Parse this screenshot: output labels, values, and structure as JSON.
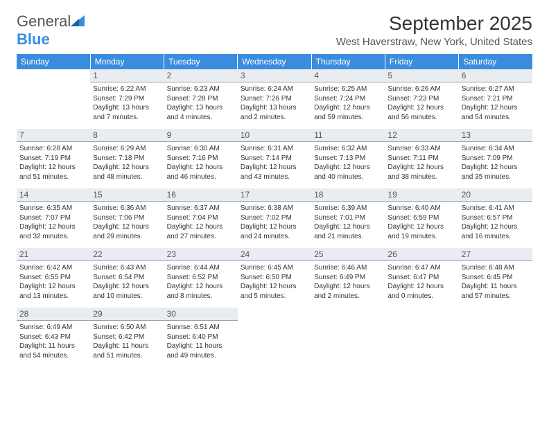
{
  "logo": {
    "textA": "General",
    "textB": "Blue"
  },
  "title": "September 2025",
  "subtitle": "West Haverstraw, New York, United States",
  "colors": {
    "header_bg": "#3a8dde",
    "header_text": "#ffffff",
    "daynum_bg": "#e9edf1",
    "daynum_border": "#8fa2b3",
    "page_bg": "#ffffff",
    "text": "#333333"
  },
  "weekdays": [
    "Sunday",
    "Monday",
    "Tuesday",
    "Wednesday",
    "Thursday",
    "Friday",
    "Saturday"
  ],
  "weeks": [
    [
      {
        "empty": true
      },
      {
        "day": "1",
        "sunrise": "Sunrise: 6:22 AM",
        "sunset": "Sunset: 7:29 PM",
        "daylight": "Daylight: 13 hours and 7 minutes."
      },
      {
        "day": "2",
        "sunrise": "Sunrise: 6:23 AM",
        "sunset": "Sunset: 7:28 PM",
        "daylight": "Daylight: 13 hours and 4 minutes."
      },
      {
        "day": "3",
        "sunrise": "Sunrise: 6:24 AM",
        "sunset": "Sunset: 7:26 PM",
        "daylight": "Daylight: 13 hours and 2 minutes."
      },
      {
        "day": "4",
        "sunrise": "Sunrise: 6:25 AM",
        "sunset": "Sunset: 7:24 PM",
        "daylight": "Daylight: 12 hours and 59 minutes."
      },
      {
        "day": "5",
        "sunrise": "Sunrise: 6:26 AM",
        "sunset": "Sunset: 7:23 PM",
        "daylight": "Daylight: 12 hours and 56 minutes."
      },
      {
        "day": "6",
        "sunrise": "Sunrise: 6:27 AM",
        "sunset": "Sunset: 7:21 PM",
        "daylight": "Daylight: 12 hours and 54 minutes."
      }
    ],
    [
      {
        "day": "7",
        "sunrise": "Sunrise: 6:28 AM",
        "sunset": "Sunset: 7:19 PM",
        "daylight": "Daylight: 12 hours and 51 minutes."
      },
      {
        "day": "8",
        "sunrise": "Sunrise: 6:29 AM",
        "sunset": "Sunset: 7:18 PM",
        "daylight": "Daylight: 12 hours and 48 minutes."
      },
      {
        "day": "9",
        "sunrise": "Sunrise: 6:30 AM",
        "sunset": "Sunset: 7:16 PM",
        "daylight": "Daylight: 12 hours and 46 minutes."
      },
      {
        "day": "10",
        "sunrise": "Sunrise: 6:31 AM",
        "sunset": "Sunset: 7:14 PM",
        "daylight": "Daylight: 12 hours and 43 minutes."
      },
      {
        "day": "11",
        "sunrise": "Sunrise: 6:32 AM",
        "sunset": "Sunset: 7:13 PM",
        "daylight": "Daylight: 12 hours and 40 minutes."
      },
      {
        "day": "12",
        "sunrise": "Sunrise: 6:33 AM",
        "sunset": "Sunset: 7:11 PM",
        "daylight": "Daylight: 12 hours and 38 minutes."
      },
      {
        "day": "13",
        "sunrise": "Sunrise: 6:34 AM",
        "sunset": "Sunset: 7:09 PM",
        "daylight": "Daylight: 12 hours and 35 minutes."
      }
    ],
    [
      {
        "day": "14",
        "sunrise": "Sunrise: 6:35 AM",
        "sunset": "Sunset: 7:07 PM",
        "daylight": "Daylight: 12 hours and 32 minutes."
      },
      {
        "day": "15",
        "sunrise": "Sunrise: 6:36 AM",
        "sunset": "Sunset: 7:06 PM",
        "daylight": "Daylight: 12 hours and 29 minutes."
      },
      {
        "day": "16",
        "sunrise": "Sunrise: 6:37 AM",
        "sunset": "Sunset: 7:04 PM",
        "daylight": "Daylight: 12 hours and 27 minutes."
      },
      {
        "day": "17",
        "sunrise": "Sunrise: 6:38 AM",
        "sunset": "Sunset: 7:02 PM",
        "daylight": "Daylight: 12 hours and 24 minutes."
      },
      {
        "day": "18",
        "sunrise": "Sunrise: 6:39 AM",
        "sunset": "Sunset: 7:01 PM",
        "daylight": "Daylight: 12 hours and 21 minutes."
      },
      {
        "day": "19",
        "sunrise": "Sunrise: 6:40 AM",
        "sunset": "Sunset: 6:59 PM",
        "daylight": "Daylight: 12 hours and 19 minutes."
      },
      {
        "day": "20",
        "sunrise": "Sunrise: 6:41 AM",
        "sunset": "Sunset: 6:57 PM",
        "daylight": "Daylight: 12 hours and 16 minutes."
      }
    ],
    [
      {
        "day": "21",
        "sunrise": "Sunrise: 6:42 AM",
        "sunset": "Sunset: 6:55 PM",
        "daylight": "Daylight: 12 hours and 13 minutes."
      },
      {
        "day": "22",
        "sunrise": "Sunrise: 6:43 AM",
        "sunset": "Sunset: 6:54 PM",
        "daylight": "Daylight: 12 hours and 10 minutes."
      },
      {
        "day": "23",
        "sunrise": "Sunrise: 6:44 AM",
        "sunset": "Sunset: 6:52 PM",
        "daylight": "Daylight: 12 hours and 8 minutes."
      },
      {
        "day": "24",
        "sunrise": "Sunrise: 6:45 AM",
        "sunset": "Sunset: 6:50 PM",
        "daylight": "Daylight: 12 hours and 5 minutes."
      },
      {
        "day": "25",
        "sunrise": "Sunrise: 6:46 AM",
        "sunset": "Sunset: 6:49 PM",
        "daylight": "Daylight: 12 hours and 2 minutes."
      },
      {
        "day": "26",
        "sunrise": "Sunrise: 6:47 AM",
        "sunset": "Sunset: 6:47 PM",
        "daylight": "Daylight: 12 hours and 0 minutes."
      },
      {
        "day": "27",
        "sunrise": "Sunrise: 6:48 AM",
        "sunset": "Sunset: 6:45 PM",
        "daylight": "Daylight: 11 hours and 57 minutes."
      }
    ],
    [
      {
        "day": "28",
        "sunrise": "Sunrise: 6:49 AM",
        "sunset": "Sunset: 6:43 PM",
        "daylight": "Daylight: 11 hours and 54 minutes."
      },
      {
        "day": "29",
        "sunrise": "Sunrise: 6:50 AM",
        "sunset": "Sunset: 6:42 PM",
        "daylight": "Daylight: 11 hours and 51 minutes."
      },
      {
        "day": "30",
        "sunrise": "Sunrise: 6:51 AM",
        "sunset": "Sunset: 6:40 PM",
        "daylight": "Daylight: 11 hours and 49 minutes."
      },
      {
        "empty": true
      },
      {
        "empty": true
      },
      {
        "empty": true
      },
      {
        "empty": true
      }
    ]
  ]
}
